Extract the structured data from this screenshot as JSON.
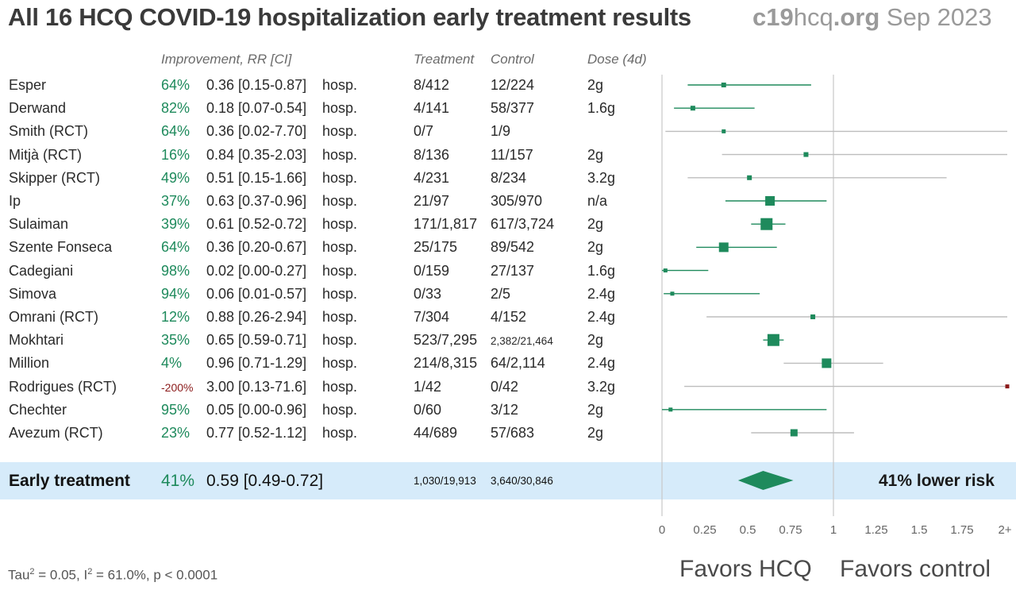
{
  "title": "All 16 HCQ COVID-19 hospitalization early treatment results",
  "brand": {
    "part1": "c19",
    "part2": "hcq",
    "part3": ".org",
    "date": "Sep 2023"
  },
  "headers": {
    "improvement": "Improvement, RR [CI]",
    "treatment": "Treatment",
    "control": "Control",
    "dose": "Dose (4d)"
  },
  "rows": [
    {
      "name": "Esper",
      "imp": "64%",
      "rr": "0.36 [0.15-0.87]",
      "outcome": "hosp.",
      "treatment": "8/412",
      "control": "12/224",
      "dose": "2g"
    },
    {
      "name": "Derwand",
      "imp": "82%",
      "rr": "0.18 [0.07-0.54]",
      "outcome": "hosp.",
      "treatment": "4/141",
      "control": "58/377",
      "dose": "1.6g"
    },
    {
      "name": "Smith (RCT)",
      "imp": "64%",
      "rr": "0.36 [0.02-7.70]",
      "outcome": "hosp.",
      "treatment": "0/7",
      "control": "1/9",
      "dose": ""
    },
    {
      "name": "Mitjà (RCT)",
      "imp": "16%",
      "rr": "0.84 [0.35-2.03]",
      "outcome": "hosp.",
      "treatment": "8/136",
      "control": "11/157",
      "dose": "2g"
    },
    {
      "name": "Skipper (RCT)",
      "imp": "49%",
      "rr": "0.51 [0.15-1.66]",
      "outcome": "hosp.",
      "treatment": "4/231",
      "control": "8/234",
      "dose": "3.2g"
    },
    {
      "name": "Ip",
      "imp": "37%",
      "rr": "0.63 [0.37-0.96]",
      "outcome": "hosp.",
      "treatment": "21/97",
      "control": "305/970",
      "dose": "n/a"
    },
    {
      "name": "Sulaiman",
      "imp": "39%",
      "rr": "0.61 [0.52-0.72]",
      "outcome": "hosp.",
      "treatment": "171/1,817",
      "control": "617/3,724",
      "dose": "2g"
    },
    {
      "name": "Szente Fonseca",
      "imp": "64%",
      "rr": "0.36 [0.20-0.67]",
      "outcome": "hosp.",
      "treatment": "25/175",
      "control": "89/542",
      "dose": "2g"
    },
    {
      "name": "Cadegiani",
      "imp": "98%",
      "rr": "0.02 [0.00-0.27]",
      "outcome": "hosp.",
      "treatment": "0/159",
      "control": "27/137",
      "dose": "1.6g"
    },
    {
      "name": "Simova",
      "imp": "94%",
      "rr": "0.06 [0.01-0.57]",
      "outcome": "hosp.",
      "treatment": "0/33",
      "control": "2/5",
      "dose": "2.4g"
    },
    {
      "name": "Omrani (RCT)",
      "imp": "12%",
      "rr": "0.88 [0.26-2.94]",
      "outcome": "hosp.",
      "treatment": "7/304",
      "control": "4/152",
      "dose": "2.4g"
    },
    {
      "name": "Mokhtari",
      "imp": "35%",
      "rr": "0.65 [0.59-0.71]",
      "outcome": "hosp.",
      "treatment": "523/7,295",
      "control": "2,382/21,464",
      "dose": "2g"
    },
    {
      "name": "Million",
      "imp": "4%",
      "rr": "0.96 [0.71-1.29]",
      "outcome": "hosp.",
      "treatment": "214/8,315",
      "control": "64/2,114",
      "dose": "2.4g"
    },
    {
      "name": "Rodrigues (RCT)",
      "imp": "-200%",
      "rr": "3.00 [0.13-71.6]",
      "outcome": "hosp.",
      "treatment": "1/42",
      "control": "0/42",
      "dose": "3.2g"
    },
    {
      "name": "Chechter",
      "imp": "95%",
      "rr": "0.05 [0.00-0.96]",
      "outcome": "hosp.",
      "treatment": "0/60",
      "control": "3/12",
      "dose": "2g"
    },
    {
      "name": "Avezum (RCT)",
      "imp": "23%",
      "rr": "0.77 [0.52-1.12]",
      "outcome": "hosp.",
      "treatment": "44/689",
      "control": "57/683",
      "dose": "2g"
    }
  ],
  "summary": {
    "name": "Early treatment",
    "imp": "41%",
    "rr": "0.59 [0.49-0.72]",
    "treatment": "1,030/19,913",
    "control": "3,640/30,846",
    "lower_risk": "41% lower risk"
  },
  "stats": {
    "tau": "Tau",
    "tau_sup": "2",
    "tau_rest": " = 0.05, I",
    "i_sup": "2",
    "i_rest": " = 61.0%, p < 0.0001"
  },
  "favors": {
    "left": "Favors HCQ",
    "right": "Favors control"
  },
  "colors": {
    "green": "#1e8a5c",
    "gray": "#bdbdbd",
    "negative": "#8b1a1a",
    "band": "#d6ebfa"
  },
  "chart_data": {
    "type": "forest",
    "x_axis": {
      "ticks": [
        0,
        0.25,
        0.5,
        0.75,
        1,
        1.25,
        1.5,
        1.75,
        2
      ],
      "tick_labels": [
        "0",
        "0.25",
        "0.5",
        "0.75",
        "1",
        "1.25",
        "1.5",
        "1.75",
        "2+"
      ],
      "xlim": [
        0,
        2
      ]
    },
    "reference_line": 1,
    "studies": [
      {
        "name": "Esper",
        "rr": 0.36,
        "lo": 0.15,
        "hi": 0.87,
        "significant": true,
        "weight": 1
      },
      {
        "name": "Derwand",
        "rr": 0.18,
        "lo": 0.07,
        "hi": 0.54,
        "significant": true,
        "weight": 1
      },
      {
        "name": "Smith (RCT)",
        "rr": 0.36,
        "lo": 0.02,
        "hi": 7.7,
        "significant": false,
        "weight": 0
      },
      {
        "name": "Mitjà (RCT)",
        "rr": 0.84,
        "lo": 0.35,
        "hi": 2.03,
        "significant": false,
        "weight": 1
      },
      {
        "name": "Skipper (RCT)",
        "rr": 0.51,
        "lo": 0.15,
        "hi": 1.66,
        "significant": false,
        "weight": 1
      },
      {
        "name": "Ip",
        "rr": 0.63,
        "lo": 0.37,
        "hi": 0.96,
        "significant": true,
        "weight": 3
      },
      {
        "name": "Sulaiman",
        "rr": 0.61,
        "lo": 0.52,
        "hi": 0.72,
        "significant": true,
        "weight": 4
      },
      {
        "name": "Szente Fonseca",
        "rr": 0.36,
        "lo": 0.2,
        "hi": 0.67,
        "significant": true,
        "weight": 3
      },
      {
        "name": "Cadegiani",
        "rr": 0.02,
        "lo": 0.0,
        "hi": 0.27,
        "significant": true,
        "weight": 0
      },
      {
        "name": "Simova",
        "rr": 0.06,
        "lo": 0.01,
        "hi": 0.57,
        "significant": true,
        "weight": 0
      },
      {
        "name": "Omrani (RCT)",
        "rr": 0.88,
        "lo": 0.26,
        "hi": 2.94,
        "significant": false,
        "weight": 1
      },
      {
        "name": "Mokhtari",
        "rr": 0.65,
        "lo": 0.59,
        "hi": 0.71,
        "significant": true,
        "weight": 4
      },
      {
        "name": "Million",
        "rr": 0.96,
        "lo": 0.71,
        "hi": 1.29,
        "significant": false,
        "weight": 3
      },
      {
        "name": "Rodrigues (RCT)",
        "rr": 3.0,
        "lo": 0.13,
        "hi": 71.6,
        "significant": false,
        "weight": 0
      },
      {
        "name": "Chechter",
        "rr": 0.05,
        "lo": 0.0,
        "hi": 0.96,
        "significant": true,
        "weight": 0
      },
      {
        "name": "Avezum (RCT)",
        "rr": 0.77,
        "lo": 0.52,
        "hi": 1.12,
        "significant": false,
        "weight": 2
      }
    ],
    "pooled": {
      "name": "Early treatment",
      "rr": 0.59,
      "lo": 0.49,
      "hi": 0.72
    }
  }
}
